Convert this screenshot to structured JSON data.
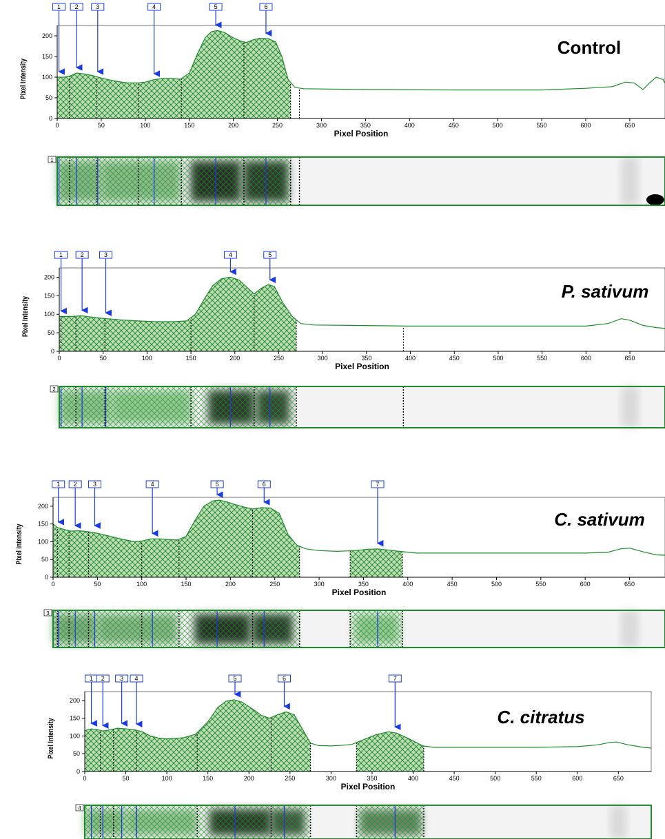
{
  "chart_data": [
    {
      "type": "area",
      "lane": "1",
      "title": "Control",
      "xlabel": "Pixel Position",
      "ylabel": "Pixel Intensity",
      "xlim": [
        0,
        690
      ],
      "ylim": [
        0,
        225
      ],
      "x_ticks": [
        "0",
        "50",
        "100",
        "150",
        "200",
        "250",
        "300",
        "350",
        "400",
        "450",
        "500",
        "550",
        "600",
        "650"
      ],
      "y_ticks": [
        "0",
        "50",
        "100",
        "150",
        "200"
      ],
      "profile": [
        [
          0,
          100
        ],
        [
          8,
          100
        ],
        [
          15,
          103
        ],
        [
          22,
          110
        ],
        [
          30,
          108
        ],
        [
          40,
          104
        ],
        [
          50,
          98
        ],
        [
          60,
          93
        ],
        [
          70,
          89
        ],
        [
          80,
          86
        ],
        [
          92,
          86
        ],
        [
          100,
          88
        ],
        [
          110,
          94
        ],
        [
          120,
          97
        ],
        [
          130,
          97
        ],
        [
          140,
          95
        ],
        [
          150,
          110
        ],
        [
          160,
          160
        ],
        [
          168,
          195
        ],
        [
          175,
          210
        ],
        [
          182,
          213
        ],
        [
          190,
          208
        ],
        [
          200,
          195
        ],
        [
          210,
          186
        ],
        [
          215,
          184
        ],
        [
          222,
          190
        ],
        [
          230,
          194
        ],
        [
          240,
          193
        ],
        [
          248,
          185
        ],
        [
          255,
          150
        ],
        [
          262,
          95
        ],
        [
          270,
          75
        ],
        [
          280,
          72
        ],
        [
          350,
          70
        ],
        [
          450,
          69
        ],
        [
          550,
          69
        ],
        [
          600,
          73
        ],
        [
          630,
          77
        ],
        [
          645,
          88
        ],
        [
          655,
          86
        ],
        [
          665,
          70
        ],
        [
          672,
          85
        ],
        [
          680,
          100
        ],
        [
          688,
          94
        ],
        [
          690,
          85
        ]
      ],
      "shaded": [
        [
          0,
          265
        ]
      ],
      "boundaries": [
        0,
        14,
        45,
        92,
        141,
        212,
        265,
        275
      ],
      "peaks": [
        {
          "label": "1",
          "x": 2,
          "y": 100
        },
        {
          "label": "2",
          "x": 22,
          "y": 110
        },
        {
          "label": "3",
          "x": 46,
          "y": 100
        },
        {
          "label": "4",
          "x": 110,
          "y": 95
        },
        {
          "label": "5",
          "x": 180,
          "y": 213
        },
        {
          "label": "6",
          "x": 237,
          "y": 193
        }
      ],
      "gel_label": "1",
      "gel_blobs": [
        {
          "x1": 0,
          "x2": 50,
          "intensity": 0.25
        },
        {
          "x1": 50,
          "x2": 140,
          "intensity": 0.22
        },
        {
          "x1": 152,
          "x2": 208,
          "intensity": 0.95
        },
        {
          "x1": 212,
          "x2": 262,
          "intensity": 0.9
        }
      ]
    },
    {
      "type": "area",
      "lane": "2",
      "title": "P. sativum",
      "xlabel": "Pixel Position",
      "ylabel": "Pixel Intensity",
      "xlim": [
        0,
        690
      ],
      "ylim": [
        0,
        225
      ],
      "x_ticks": [
        "0",
        "50",
        "100",
        "150",
        "200",
        "250",
        "300",
        "350",
        "400",
        "450",
        "500",
        "550",
        "600",
        "650"
      ],
      "y_ticks": [
        "0",
        "50",
        "100",
        "150",
        "200"
      ],
      "profile": [
        [
          0,
          94
        ],
        [
          5,
          94
        ],
        [
          15,
          94
        ],
        [
          25,
          96
        ],
        [
          35,
          93
        ],
        [
          45,
          90
        ],
        [
          55,
          88
        ],
        [
          70,
          85
        ],
        [
          90,
          82
        ],
        [
          110,
          80
        ],
        [
          130,
          80
        ],
        [
          145,
          82
        ],
        [
          155,
          100
        ],
        [
          165,
          140
        ],
        [
          175,
          178
        ],
        [
          185,
          196
        ],
        [
          195,
          200
        ],
        [
          205,
          192
        ],
        [
          215,
          170
        ],
        [
          222,
          155
        ],
        [
          230,
          170
        ],
        [
          238,
          180
        ],
        [
          245,
          175
        ],
        [
          255,
          130
        ],
        [
          265,
          95
        ],
        [
          275,
          75
        ],
        [
          290,
          71
        ],
        [
          400,
          68
        ],
        [
          500,
          68
        ],
        [
          550,
          68
        ],
        [
          600,
          68
        ],
        [
          625,
          75
        ],
        [
          640,
          88
        ],
        [
          650,
          84
        ],
        [
          665,
          70
        ],
        [
          680,
          64
        ],
        [
          690,
          62
        ]
      ],
      "shaded": [
        [
          0,
          270
        ]
      ],
      "boundaries": [
        2,
        19,
        52,
        150,
        222,
        270,
        392
      ],
      "peaks": [
        {
          "label": "1",
          "x": 2,
          "y": 94
        },
        {
          "label": "2",
          "x": 26,
          "y": 96
        },
        {
          "label": "3",
          "x": 53,
          "y": 89
        },
        {
          "label": "4",
          "x": 195,
          "y": 200
        },
        {
          "label": "5",
          "x": 240,
          "y": 178
        }
      ],
      "gel_label": "2",
      "gel_blobs": [
        {
          "x1": 0,
          "x2": 60,
          "intensity": 0.18
        },
        {
          "x1": 60,
          "x2": 150,
          "intensity": 0.15
        },
        {
          "x1": 170,
          "x2": 222,
          "intensity": 0.9
        },
        {
          "x1": 225,
          "x2": 262,
          "intensity": 0.85
        }
      ]
    },
    {
      "type": "area",
      "lane": "3",
      "title": "C. sativum",
      "xlabel": "Pixel Position",
      "ylabel": "Pixel Intensity",
      "xlim": [
        0,
        690
      ],
      "ylim": [
        0,
        225
      ],
      "x_ticks": [
        "0",
        "50",
        "100",
        "150",
        "200",
        "250",
        "300",
        "350",
        "400",
        "450",
        "500",
        "550",
        "600",
        "650"
      ],
      "y_ticks": [
        "0",
        "50",
        "100",
        "150",
        "200"
      ],
      "profile": [
        [
          0,
          150
        ],
        [
          5,
          140
        ],
        [
          12,
          135
        ],
        [
          20,
          130
        ],
        [
          30,
          131
        ],
        [
          40,
          128
        ],
        [
          50,
          124
        ],
        [
          60,
          118
        ],
        [
          70,
          112
        ],
        [
          80,
          106
        ],
        [
          92,
          100
        ],
        [
          100,
          102
        ],
        [
          110,
          108
        ],
        [
          120,
          108
        ],
        [
          130,
          106
        ],
        [
          140,
          105
        ],
        [
          150,
          115
        ],
        [
          160,
          160
        ],
        [
          170,
          200
        ],
        [
          180,
          215
        ],
        [
          187,
          217
        ],
        [
          195,
          213
        ],
        [
          205,
          205
        ],
        [
          215,
          198
        ],
        [
          225,
          192
        ],
        [
          235,
          196
        ],
        [
          245,
          195
        ],
        [
          255,
          180
        ],
        [
          265,
          120
        ],
        [
          275,
          90
        ],
        [
          285,
          80
        ],
        [
          300,
          75
        ],
        [
          320,
          73
        ],
        [
          340,
          75
        ],
        [
          355,
          79
        ],
        [
          366,
          80
        ],
        [
          380,
          76
        ],
        [
          394,
          72
        ],
        [
          410,
          68
        ],
        [
          500,
          68
        ],
        [
          550,
          68
        ],
        [
          600,
          68
        ],
        [
          625,
          70
        ],
        [
          640,
          80
        ],
        [
          650,
          82
        ],
        [
          665,
          72
        ],
        [
          680,
          63
        ],
        [
          690,
          62
        ]
      ],
      "shaded": [
        [
          0,
          278
        ],
        [
          335,
          394
        ]
      ],
      "boundaries": [
        5,
        18,
        40,
        100,
        142,
        225,
        278,
        335,
        394
      ],
      "peaks": [
        {
          "label": "1",
          "x": 6,
          "y": 140
        },
        {
          "label": "2",
          "x": 25,
          "y": 130
        },
        {
          "label": "3",
          "x": 47,
          "y": 130
        },
        {
          "label": "4",
          "x": 112,
          "y": 108
        },
        {
          "label": "5",
          "x": 185,
          "y": 217
        },
        {
          "label": "6",
          "x": 238,
          "y": 196
        },
        {
          "label": "7",
          "x": 366,
          "y": 80
        }
      ],
      "gel_label": "3",
      "gel_blobs": [
        {
          "x1": 0,
          "x2": 50,
          "intensity": 0.3
        },
        {
          "x1": 50,
          "x2": 140,
          "intensity": 0.25
        },
        {
          "x1": 160,
          "x2": 222,
          "intensity": 0.95
        },
        {
          "x1": 225,
          "x2": 270,
          "intensity": 0.9
        },
        {
          "x1": 340,
          "x2": 390,
          "intensity": 0.15
        }
      ]
    },
    {
      "type": "area",
      "lane": "4",
      "title": "C. citratus",
      "xlabel": "Pixel Position",
      "ylabel": "Pixel Intensity",
      "xlim": [
        0,
        690
      ],
      "ylim": [
        0,
        225
      ],
      "x_ticks": [
        "0",
        "50",
        "100",
        "150",
        "200",
        "250",
        "300",
        "350",
        "400",
        "450",
        "500",
        "550",
        "600",
        "650"
      ],
      "y_ticks": [
        "0",
        "50",
        "100",
        "150",
        "200"
      ],
      "profile": [
        [
          0,
          115
        ],
        [
          8,
          120
        ],
        [
          15,
          118
        ],
        [
          22,
          114
        ],
        [
          30,
          117
        ],
        [
          40,
          122
        ],
        [
          50,
          120
        ],
        [
          60,
          118
        ],
        [
          70,
          112
        ],
        [
          80,
          100
        ],
        [
          90,
          94
        ],
        [
          100,
          92
        ],
        [
          120,
          95
        ],
        [
          135,
          105
        ],
        [
          150,
          140
        ],
        [
          162,
          180
        ],
        [
          172,
          198
        ],
        [
          182,
          202
        ],
        [
          192,
          195
        ],
        [
          205,
          175
        ],
        [
          215,
          158
        ],
        [
          225,
          150
        ],
        [
          235,
          160
        ],
        [
          245,
          168
        ],
        [
          255,
          160
        ],
        [
          265,
          120
        ],
        [
          275,
          80
        ],
        [
          285,
          73
        ],
        [
          300,
          72
        ],
        [
          315,
          74
        ],
        [
          325,
          76
        ],
        [
          340,
          90
        ],
        [
          355,
          104
        ],
        [
          370,
          112
        ],
        [
          380,
          108
        ],
        [
          395,
          92
        ],
        [
          412,
          72
        ],
        [
          425,
          68
        ],
        [
          500,
          68
        ],
        [
          550,
          68
        ],
        [
          600,
          70
        ],
        [
          625,
          75
        ],
        [
          640,
          82
        ],
        [
          648,
          83
        ],
        [
          660,
          76
        ],
        [
          680,
          68
        ],
        [
          690,
          66
        ]
      ],
      "shaded": [
        [
          0,
          275
        ],
        [
          331,
          413
        ]
      ],
      "boundaries": [
        0,
        19,
        35,
        63,
        137,
        227,
        275,
        331,
        413
      ],
      "peaks": [
        {
          "label": "1",
          "x": 8,
          "y": 120
        },
        {
          "label": "2",
          "x": 22,
          "y": 114
        },
        {
          "label": "3",
          "x": 45,
          "y": 120
        },
        {
          "label": "4",
          "x": 63,
          "y": 118
        },
        {
          "label": "5",
          "x": 183,
          "y": 202
        },
        {
          "label": "6",
          "x": 243,
          "y": 168
        },
        {
          "label": "7",
          "x": 378,
          "y": 110
        }
      ],
      "gel_label": "4",
      "gel_blobs": [
        {
          "x1": 0,
          "x2": 50,
          "intensity": 0.22
        },
        {
          "x1": 50,
          "x2": 137,
          "intensity": 0.2
        },
        {
          "x1": 152,
          "x2": 227,
          "intensity": 0.9
        },
        {
          "x1": 227,
          "x2": 268,
          "intensity": 0.75
        },
        {
          "x1": 335,
          "x2": 410,
          "intensity": 0.5
        }
      ]
    }
  ]
}
